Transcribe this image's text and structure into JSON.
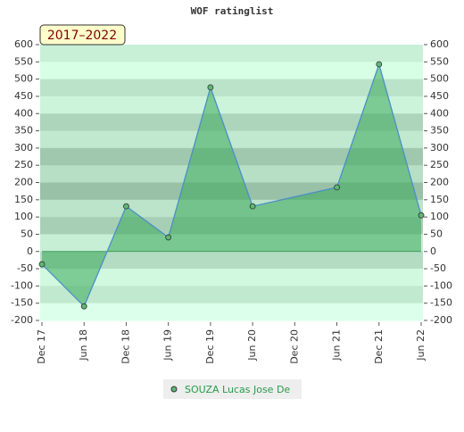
{
  "chart_data": {
    "type": "area",
    "title": "WOF ratinglist",
    "badge": "2017–2022",
    "x": [
      0,
      6,
      12,
      18,
      24,
      30,
      42,
      48,
      54
    ],
    "series": [
      {
        "name": "SOUZA Lucas Jose De",
        "color": "#4a90c8",
        "values": [
          -37,
          -159,
          131,
          41,
          476,
          131,
          186,
          543,
          105
        ]
      }
    ],
    "xlim": [
      0,
      54
    ],
    "xticks": [
      {
        "value": 0,
        "label": "Dec 17"
      },
      {
        "value": 6,
        "label": "Jun 18"
      },
      {
        "value": 12,
        "label": "Dec 18"
      },
      {
        "value": 18,
        "label": "Jun 19"
      },
      {
        "value": 24,
        "label": "Dec 19"
      },
      {
        "value": 30,
        "label": "Jun 20"
      },
      {
        "value": 36,
        "label": "Dec 20"
      },
      {
        "value": 42,
        "label": "Jun 21"
      },
      {
        "value": 48,
        "label": "Dec 21"
      },
      {
        "value": 54,
        "label": "Jun 22"
      }
    ],
    "ylim": [
      -200,
      600
    ],
    "yticks": [
      -200,
      -150,
      -100,
      -50,
      0,
      50,
      100,
      150,
      200,
      250,
      300,
      350,
      400,
      450,
      500,
      550,
      600
    ]
  }
}
